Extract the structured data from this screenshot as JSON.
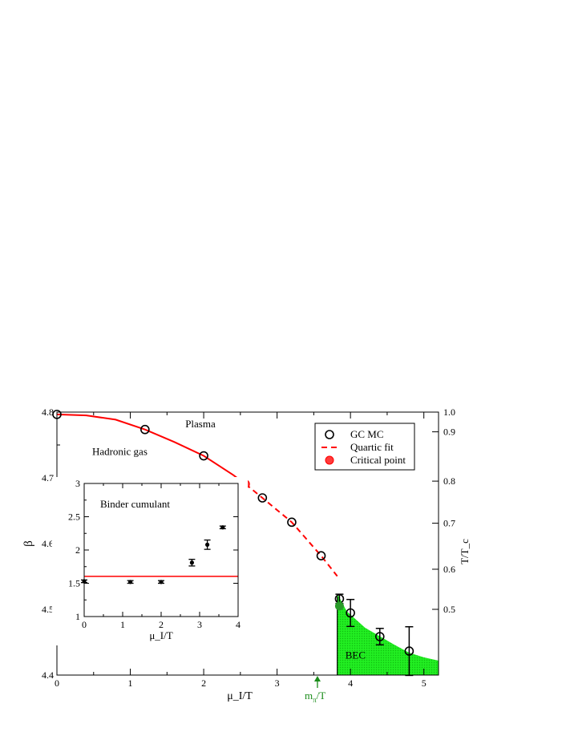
{
  "chart_data": [
    {
      "type": "scatter",
      "title": "",
      "xlabel": "μ_I/T",
      "ylabel": "β",
      "y2label": "T/T_c",
      "xlim": [
        0,
        5.2
      ],
      "ylim": [
        4.4,
        4.8
      ],
      "x_ticks": [
        0,
        1,
        2,
        3,
        4,
        5
      ],
      "y_ticks": [
        4.4,
        4.5,
        4.6,
        4.7,
        4.8
      ],
      "y2_ticks": [
        {
          "label": "1.0",
          "beta": 4.8
        },
        {
          "label": "0.9",
          "beta": 4.77
        },
        {
          "label": "0.8",
          "beta": 4.695
        },
        {
          "label": "0.7",
          "beta": 4.631
        },
        {
          "label": "0.6",
          "beta": 4.561
        },
        {
          "label": "0.5",
          "beta": 4.5
        }
      ],
      "annotations": [
        {
          "text": "Plasma",
          "x": 1.75,
          "y": 4.777
        },
        {
          "text": "Hadronic gas",
          "x": 0.48,
          "y": 4.735
        },
        {
          "text": "BEC",
          "x": 3.93,
          "y": 4.425
        },
        {
          "text_main": "m",
          "text_sub": "π",
          "text_tail": "/T",
          "x": 3.55,
          "color": "#1a8c1a"
        }
      ],
      "legend": {
        "placement": "top-right",
        "entries": [
          {
            "label": "GC MC",
            "marker": "open-circle",
            "color": "#000000"
          },
          {
            "label": "Quartic fit",
            "marker": "dashed-line",
            "color": "#ff0000"
          },
          {
            "label": "Critical point",
            "marker": "filled-circle",
            "color": "#ff0000"
          }
        ]
      },
      "series": [
        {
          "name": "GC MC",
          "points": [
            {
              "x": 0.0,
              "y": 4.7965,
              "err": 0
            },
            {
              "x": 1.2,
              "y": 4.7735,
              "err": 0
            },
            {
              "x": 2.0,
              "y": 4.7335,
              "err": 0
            },
            {
              "x": 2.8,
              "y": 4.6695,
              "err": 0
            },
            {
              "x": 3.2,
              "y": 4.6325,
              "err": 0
            },
            {
              "x": 3.6,
              "y": 4.5815,
              "err": 0
            },
            {
              "x": 3.85,
              "y": 4.516,
              "err": 0.007
            },
            {
              "x": 4.0,
              "y": 4.4945,
              "err": 0.0205
            },
            {
              "x": 4.4,
              "y": 4.4585,
              "err": 0.0125
            },
            {
              "x": 4.8,
              "y": 4.4365,
              "err": 0.037
            }
          ]
        },
        {
          "name": "Quartic fit",
          "solid_range": [
            0,
            2.57
          ],
          "dashed_range": [
            2.57,
            3.82
          ],
          "curve": [
            [
              0.0,
              4.7965
            ],
            [
              0.4,
              4.795
            ],
            [
              0.8,
              4.7885
            ],
            [
              1.2,
              4.7735
            ],
            [
              1.6,
              4.7545
            ],
            [
              2.0,
              4.7335
            ],
            [
              2.4,
              4.7045
            ],
            [
              2.57,
              4.6905
            ],
            [
              2.8,
              4.6695
            ],
            [
              3.2,
              4.6325
            ],
            [
              3.6,
              4.5815
            ],
            [
              3.82,
              4.5505
            ]
          ]
        },
        {
          "name": "Critical point",
          "points": [
            {
              "x": 2.57,
              "y": 4.6905
            }
          ],
          "color": "#ff0000"
        },
        {
          "name": "BEC",
          "type": "area",
          "color": "#00e000",
          "boundary": [
            [
              3.82,
              4.524
            ],
            [
              3.95,
              4.497
            ],
            [
              4.2,
              4.472
            ],
            [
              4.4,
              4.459
            ],
            [
              4.6,
              4.446
            ],
            [
              4.8,
              4.434
            ],
            [
              5.0,
              4.427
            ],
            [
              5.2,
              4.422
            ]
          ],
          "marker_point": {
            "x": 3.85,
            "y": 4.505,
            "color": "#2a9a2a"
          }
        }
      ]
    },
    {
      "type": "scatter",
      "title": "",
      "label": "Binder cumulant",
      "xlabel": "μ_I/T",
      "ylabel": "",
      "xlim": [
        0,
        4
      ],
      "ylim": [
        1,
        3
      ],
      "x_ticks": [
        0,
        1,
        2,
        3,
        4
      ],
      "y_ticks": [
        1,
        1.5,
        2,
        2.5,
        3
      ],
      "reference_line": {
        "y": 1.604,
        "color": "#ff0000"
      },
      "series": [
        {
          "name": "Binder cumulant",
          "points": [
            {
              "x": 0.0,
              "y": 1.53,
              "err": 0.02
            },
            {
              "x": 1.2,
              "y": 1.52,
              "err": 0.02
            },
            {
              "x": 2.0,
              "y": 1.52,
              "err": 0.02
            },
            {
              "x": 2.8,
              "y": 1.81,
              "err": 0.05
            },
            {
              "x": 3.2,
              "y": 2.08,
              "err": 0.07
            },
            {
              "x": 3.6,
              "y": 2.34,
              "err": 0.02
            }
          ]
        }
      ]
    }
  ]
}
